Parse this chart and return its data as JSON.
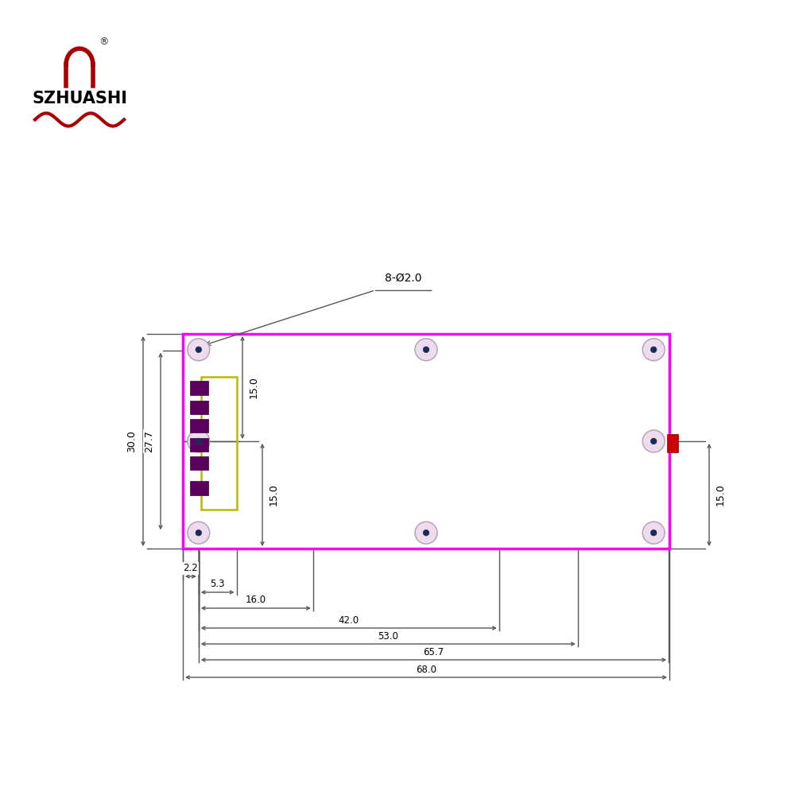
{
  "bg_color": "#ffffff",
  "board_color": "#ff00ff",
  "board_lw": 2.5,
  "dim_color": "#555555",
  "dim_lw": 1.0,
  "note_label": "8-Ø2.0",
  "dim_30_label": "30.0",
  "dim_277_label": "27.7",
  "dim_15a_label": "15.0",
  "dim_15b_label": "15.0",
  "dim_22_label": "2.2",
  "dim_53_label": "5.3",
  "dim_16_label": "16.0",
  "dim_42_label": "42.0",
  "dim_530_label": "53.0",
  "dim_657_label": "65.7",
  "dim_68_label": "68.0",
  "dim_15c_label": "15.0",
  "purple_color": "#5c0060",
  "yellow_color": "#cccc00",
  "red_color": "#cc0000",
  "hole_outer_color": "#d8b8d8",
  "hole_inner_color": "#1a2a5e"
}
